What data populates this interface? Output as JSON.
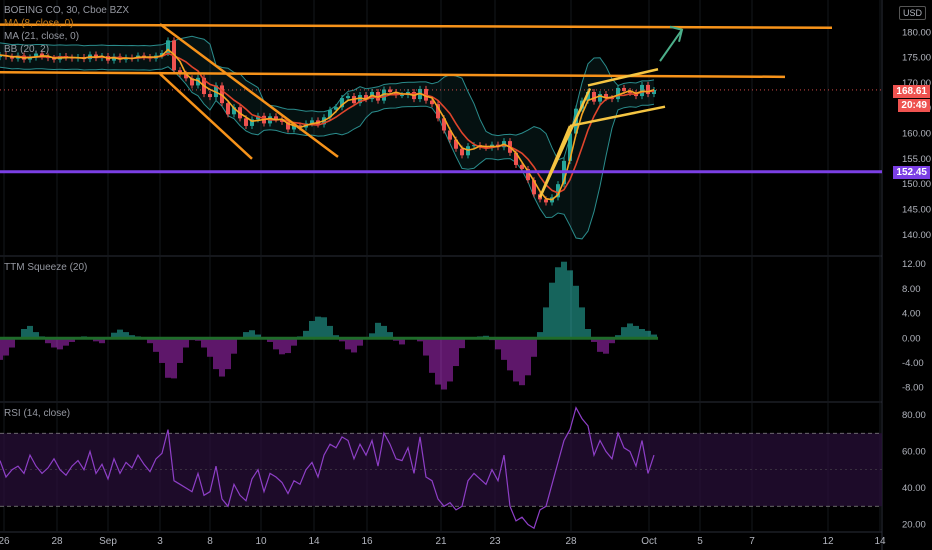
{
  "header": {
    "symbol_title": "BOEING CO, 30, Cboe BZX",
    "indicator_ma8": "MA (8, close, 0)",
    "indicator_ma21": "MA (21, close, 0)",
    "indicator_bb": "BB (20, 2)",
    "currency_button": "USD"
  },
  "panes": {
    "squeeze_title": "TTM Squeeze (20)",
    "rsi_title": "RSI (14, close)"
  },
  "price_tags": {
    "last_price": "168.61",
    "countdown": "20:49",
    "support_level": "152.45"
  },
  "colors": {
    "background": "#000000",
    "trendline": "#f7931a",
    "channel": "#f5c542",
    "support": "#7b3fe4",
    "ma_fast": "#f5a623",
    "ma_slow": "#e0452c",
    "bollinger": "#2a8c8c",
    "candle_up": "#26a69a",
    "candle_down": "#ef5350",
    "arrow": "#4caf8a",
    "squeeze_pos": "#26a69a",
    "squeeze_neg": "#9c27b0",
    "rsi": "#8e3fc7",
    "last_price_tag": "#ef5350",
    "countdown_tag": "#ef5350",
    "support_tag": "#7b3fe4"
  },
  "chart_data": {
    "type": "line",
    "x_tick_labels": [
      "26",
      "28",
      "Sep",
      "3",
      "8",
      "10",
      "14",
      "16",
      "21",
      "23",
      "28",
      "Oct",
      "5",
      "7",
      "12",
      "14"
    ],
    "price_axis": {
      "ticks": [
        "180.00",
        "175.00",
        "170.00",
        "165.00",
        "160.00",
        "155.00",
        "150.00",
        "145.00",
        "140.00"
      ],
      "ylim": [
        137,
        184
      ]
    },
    "price_series": {
      "name": "BOEING CO",
      "x": [
        0,
        6,
        12,
        18,
        24,
        30,
        36,
        42,
        48,
        54,
        60,
        66,
        72,
        78,
        84,
        90,
        96,
        102,
        108,
        114,
        120,
        126,
        132,
        138,
        144,
        150,
        156,
        162,
        168,
        174,
        180,
        186,
        192,
        198,
        204,
        210,
        216,
        222,
        228,
        234,
        240,
        246,
        252,
        258,
        264,
        270,
        276,
        282,
        288,
        294,
        300,
        306,
        312,
        318,
        324,
        330,
        336,
        342,
        348,
        354,
        360,
        366,
        372,
        378,
        384,
        390,
        396,
        402,
        408,
        414,
        420,
        426,
        432,
        438,
        444,
        450,
        456,
        462,
        468,
        474,
        480,
        486,
        492,
        498,
        504,
        510,
        516,
        522,
        528,
        534,
        540,
        546,
        552,
        558,
        564,
        570,
        576,
        582,
        588,
        594,
        600,
        606,
        612,
        618,
        624,
        630,
        636,
        642,
        648,
        654
      ],
      "close": [
        175.5,
        175.2,
        174.8,
        175.4,
        174.6,
        175.0,
        175.8,
        175.2,
        174.9,
        174.6,
        175.3,
        175.0,
        174.8,
        175.1,
        174.7,
        175.6,
        174.9,
        175.3,
        174.4,
        175.2,
        174.6,
        175.0,
        174.8,
        175.4,
        175.1,
        174.8,
        175.4,
        175.9,
        178.4,
        172.5,
        171.8,
        170.9,
        169.5,
        171.0,
        167.8,
        167.2,
        169.5,
        166.0,
        163.8,
        165.2,
        163.0,
        161.5,
        162.8,
        163.5,
        162.0,
        163.4,
        162.8,
        162.3,
        160.8,
        161.6,
        161.2,
        162.0,
        162.6,
        161.8,
        163.2,
        164.7,
        165.2,
        167.0,
        167.4,
        166.0,
        167.6,
        166.8,
        168.2,
        166.5,
        168.7,
        168.2,
        167.6,
        167.6,
        168.2,
        166.8,
        168.8,
        166.5,
        165.8,
        163.0,
        160.6,
        158.8,
        157.0,
        155.7,
        157.5,
        157.7,
        157.4,
        157.2,
        157.8,
        157.3,
        158.5,
        156.2,
        153.8,
        153.0,
        150.8,
        148.0,
        147.0,
        146.4,
        147.4,
        150.0,
        154.6,
        160.0,
        164.9,
        166.5,
        168.2,
        166.3,
        167.8,
        167.0,
        166.8,
        169.0,
        168.4,
        168.0,
        167.4,
        169.6,
        167.8,
        168.6
      ]
    },
    "ma8_series_name": "MA (8, close, 0)",
    "ma21_series_name": "MA (21, close, 0)",
    "bb_series_name": "BB (20, 2)",
    "support_level": 152.45,
    "squeeze": {
      "name": "TTM Squeeze (20)",
      "ticks": [
        "12.00",
        "8.00",
        "4.00",
        "0.00",
        "-4.00",
        "-8.00"
      ],
      "ylim": [
        -10,
        13
      ],
      "values": [
        -3.5,
        -2.8,
        -1.5,
        0.0,
        1.5,
        2.0,
        1.0,
        0.3,
        -0.8,
        -1.5,
        -1.8,
        -1.2,
        -0.6,
        0.0,
        0.3,
        0.2,
        -0.5,
        -0.8,
        0.2,
        0.9,
        1.4,
        1.0,
        0.5,
        0.3,
        -0.2,
        -0.8,
        -2.2,
        -4.0,
        -6.4,
        -6.5,
        -4.0,
        -1.5,
        -0.3,
        -0.4,
        -1.5,
        -3.0,
        -5.0,
        -6.2,
        -5.0,
        -2.5,
        0.2,
        1.0,
        1.3,
        0.6,
        0.1,
        -0.6,
        -1.8,
        -2.6,
        -2.4,
        -1.2,
        0.3,
        1.2,
        2.8,
        3.5,
        3.4,
        2.0,
        0.5,
        -0.5,
        -1.8,
        -2.3,
        -1.2,
        -0.2,
        0.8,
        2.5,
        2.0,
        1.0,
        -0.4,
        -1.0,
        -0.2,
        0.2,
        -0.5,
        -2.8,
        -5.6,
        -7.5,
        -8.3,
        -7.0,
        -4.5,
        -1.6,
        -0.2,
        0.2,
        0.3,
        0.4,
        -0.3,
        -1.8,
        -3.5,
        -5.2,
        -7.0,
        -7.6,
        -6.0,
        -3.0,
        1.0,
        5.0,
        9.0,
        11.5,
        12.4,
        11.0,
        8.5,
        5.0,
        1.5,
        -0.6,
        -2.2,
        -2.5,
        -0.8,
        0.5,
        1.8,
        2.4,
        2.0,
        1.5,
        1.2,
        0.6
      ]
    },
    "rsi": {
      "name": "RSI (14, close)",
      "ticks": [
        "80.00",
        "60.00",
        "40.00",
        "20.00"
      ],
      "ylim": [
        17,
        86
      ],
      "upper_band": 70,
      "lower_band": 30,
      "values": [
        55,
        46,
        50,
        52,
        48,
        58,
        52,
        48,
        51,
        56,
        50,
        47,
        52,
        55,
        50,
        60,
        48,
        53,
        45,
        56,
        48,
        54,
        51,
        58,
        53,
        49,
        56,
        59,
        72,
        44,
        42,
        40,
        38,
        48,
        36,
        38,
        52,
        34,
        30,
        42,
        36,
        33,
        45,
        50,
        38,
        48,
        46,
        43,
        37,
        44,
        42,
        50,
        54,
        46,
        58,
        64,
        62,
        68,
        66,
        56,
        64,
        58,
        66,
        52,
        70,
        64,
        56,
        55,
        62,
        48,
        68,
        46,
        44,
        34,
        30,
        32,
        28,
        30,
        44,
        48,
        45,
        42,
        50,
        44,
        58,
        30,
        22,
        24,
        20,
        18,
        28,
        30,
        42,
        54,
        66,
        72,
        84,
        78,
        74,
        58,
        66,
        60,
        56,
        70,
        62,
        60,
        52,
        66,
        48,
        58
      ]
    },
    "annotations": {
      "orange_trendlines": [
        {
          "from": [
            0,
            172.1
          ],
          "to": [
            785,
            171.2
          ]
        },
        {
          "from": [
            0,
            181.5
          ],
          "to": [
            832,
            180.9
          ]
        },
        {
          "from": [
            160,
            181.6
          ],
          "to": [
            338,
            155.4
          ]
        },
        {
          "from": [
            160,
            171.8
          ],
          "to": [
            252,
            155.0
          ]
        }
      ],
      "yellow_channel": [
        {
          "from": [
            540,
            147.4
          ],
          "to": [
            590,
            168.9
          ]
        },
        {
          "from": [
            540,
            147.4
          ],
          "to": [
            570,
            161.5
          ]
        },
        {
          "from": [
            588,
            169.5
          ],
          "to": [
            658,
            172.7
          ]
        },
        {
          "from": [
            570,
            161.5
          ],
          "to": [
            665,
            165.3
          ]
        }
      ],
      "up_arrow": {
        "from": [
          660,
          174.3
        ],
        "to": [
          682,
          180.5
        ]
      }
    }
  }
}
